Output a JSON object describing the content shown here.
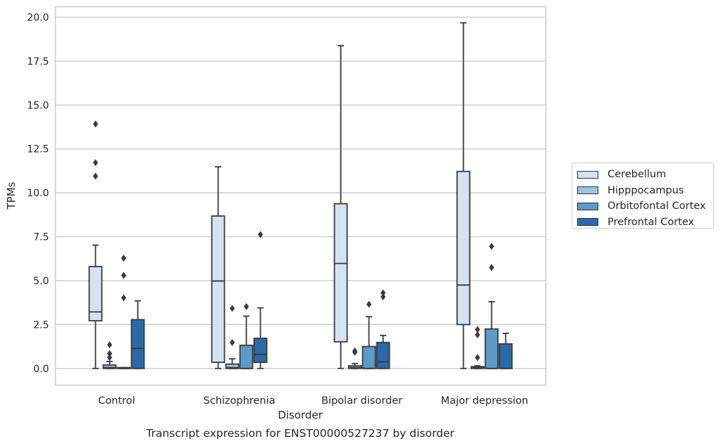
{
  "chart_data": {
    "type": "box",
    "caption": "Transcript expression for ENST00000527237 by disorder",
    "xlabel": "Disorder",
    "ylabel": "TPMs",
    "ylim": [
      -0.95,
      20.6
    ],
    "yticks": [
      0.0,
      2.5,
      5.0,
      7.5,
      10.0,
      12.5,
      15.0,
      17.5,
      20.0
    ],
    "ytick_labels": [
      "0.0",
      "2.5",
      "5.0",
      "7.5",
      "10.0",
      "12.5",
      "15.0",
      "17.5",
      "20.0"
    ],
    "grid": "horizontal",
    "legend_position": "right",
    "categories": [
      "Control",
      "Schizophrenia",
      "Bipolar disorder",
      "Major depression"
    ],
    "series": [
      {
        "name": "Cerebellum",
        "color": "#d3e3f2",
        "boxes": [
          {
            "whisker_low": 0.0,
            "q1": 2.72,
            "median": 3.22,
            "q3": 5.8,
            "whisker_high": 7.02,
            "outliers": [
              10.95,
              11.72,
              13.92
            ]
          },
          {
            "whisker_low": 0.0,
            "q1": 0.35,
            "median": 4.98,
            "q3": 8.68,
            "whisker_high": 11.48,
            "outliers": []
          },
          {
            "whisker_low": 0.0,
            "q1": 1.52,
            "median": 5.98,
            "q3": 9.38,
            "whisker_high": 18.38,
            "outliers": []
          },
          {
            "whisker_low": 0.0,
            "q1": 2.5,
            "median": 4.75,
            "q3": 11.22,
            "whisker_high": 19.68,
            "outliers": []
          }
        ]
      },
      {
        "name": "Hipppocampus",
        "color": "#9ac5df",
        "boxes": [
          {
            "whisker_low": 0.0,
            "q1": 0.0,
            "median": 0.05,
            "q3": 0.2,
            "whisker_high": 0.4,
            "outliers": [
              0.62,
              0.85,
              1.35
            ]
          },
          {
            "whisker_low": 0.0,
            "q1": 0.0,
            "median": 0.05,
            "q3": 0.25,
            "whisker_high": 0.55,
            "outliers": [
              1.48,
              3.42
            ]
          },
          {
            "whisker_low": 0.0,
            "q1": 0.0,
            "median": 0.05,
            "q3": 0.15,
            "whisker_high": 0.28,
            "outliers": [
              0.92,
              1.0
            ]
          },
          {
            "whisker_low": 0.0,
            "q1": 0.0,
            "median": 0.03,
            "q3": 0.1,
            "whisker_high": 0.15,
            "outliers": [
              0.62,
              1.92,
              2.22
            ]
          }
        ]
      },
      {
        "name": "Orbitofontal Cortex",
        "color": "#5b9bc9",
        "boxes": [
          {
            "whisker_low": 0.0,
            "q1": 0.0,
            "median": 0.0,
            "q3": 0.05,
            "whisker_high": 0.05,
            "outliers": [
              4.02,
              5.3,
              6.28
            ]
          },
          {
            "whisker_low": 0.0,
            "q1": 0.0,
            "median": 0.0,
            "q3": 1.32,
            "whisker_high": 2.98,
            "outliers": [
              3.52
            ]
          },
          {
            "whisker_low": 0.0,
            "q1": 0.0,
            "median": 0.0,
            "q3": 1.25,
            "whisker_high": 2.95,
            "outliers": [
              3.65
            ]
          },
          {
            "whisker_low": 0.0,
            "q1": 0.0,
            "median": 0.0,
            "q3": 2.25,
            "whisker_high": 3.8,
            "outliers": [
              5.75,
              6.95
            ]
          }
        ]
      },
      {
        "name": "Prefrontal Cortex",
        "color": "#2a6aa9",
        "boxes": [
          {
            "whisker_low": 0.0,
            "q1": 0.0,
            "median": 1.15,
            "q3": 2.78,
            "whisker_high": 3.85,
            "outliers": []
          },
          {
            "whisker_low": 0.0,
            "q1": 0.35,
            "median": 0.8,
            "q3": 1.72,
            "whisker_high": 3.45,
            "outliers": [
              7.62
            ]
          },
          {
            "whisker_low": 0.0,
            "q1": 0.0,
            "median": 0.38,
            "q3": 1.48,
            "whisker_high": 1.88,
            "outliers": [
              4.08,
              4.3
            ]
          },
          {
            "whisker_low": 0.0,
            "q1": 0.0,
            "median": 0.0,
            "q3": 1.4,
            "whisker_high": 2.0,
            "outliers": []
          }
        ]
      }
    ]
  }
}
